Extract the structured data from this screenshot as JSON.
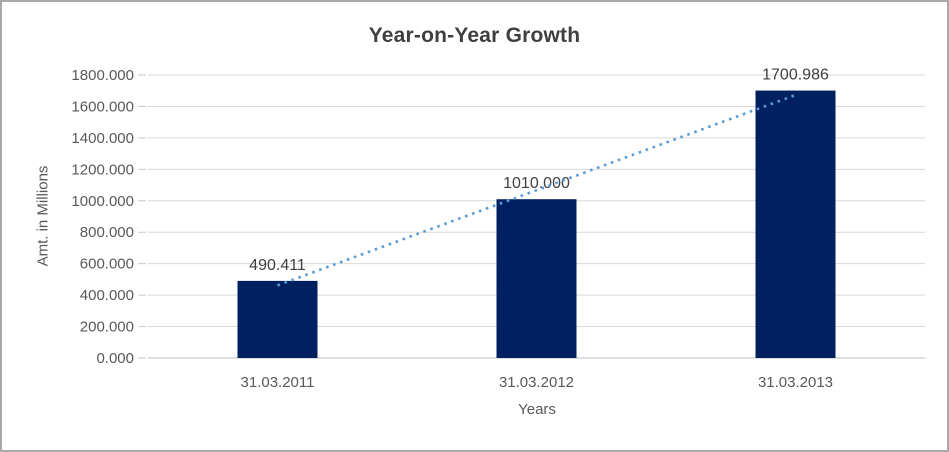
{
  "chart": {
    "title": "Year-on-Year Growth",
    "x_axis_title": "Years",
    "y_axis_title": "Amt. in Millions"
  },
  "chart_data": {
    "type": "bar",
    "title": "Year-on-Year Growth",
    "categories": [
      "31.03.2011",
      "31.03.2012",
      "31.03.2013"
    ],
    "values": [
      490.411,
      1010.0,
      1700.986
    ],
    "data_labels": [
      "490.411",
      "1010.000",
      "1700.986"
    ],
    "xlabel": "Years",
    "ylabel": "Amt. in Millions",
    "ylim": [
      0,
      1800
    ],
    "ytick_step": 200,
    "ytick_labels": [
      "1800.000",
      "1600.000",
      "1400.000",
      "1200.000",
      "1000.000",
      "800.000",
      "600.000",
      "400.000",
      "200.000",
      "0.000"
    ],
    "grid": true,
    "legend": "none",
    "bar_color": "#002060",
    "trendline": {
      "type": "linear",
      "style": "dotted",
      "color": "#5B9BD5"
    }
  },
  "colors": {
    "bar": "#002060",
    "trendline": "#5B9BD5",
    "gridline": "#D9D9D9",
    "axis_line": "#BFBFBF",
    "tick_mark": "#C9C9C9",
    "title_text": "#3F3F3F",
    "axis_text": "#595959",
    "data_label_text": "#404040",
    "frame_border": "#A9A9A9",
    "background": "#FFFFFF"
  }
}
